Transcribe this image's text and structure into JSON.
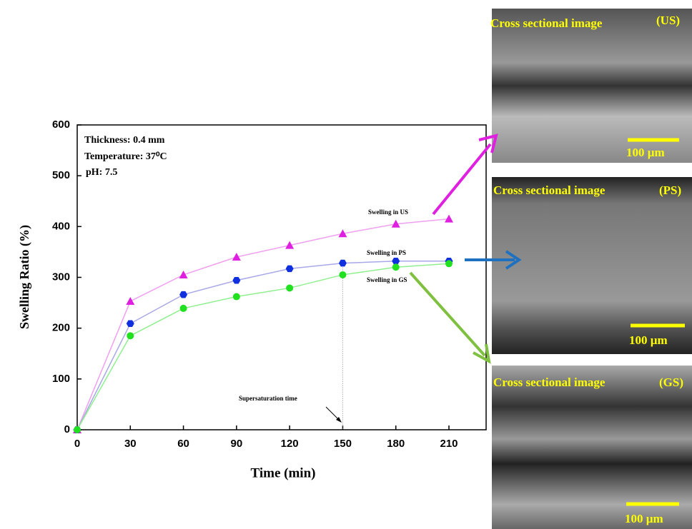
{
  "chart_data": {
    "type": "line",
    "xlabel": "Time (min)",
    "ylabel": "Swelling Ratio (%)",
    "x": [
      0,
      30,
      60,
      90,
      120,
      150,
      180,
      210
    ],
    "xlim": [
      0,
      231
    ],
    "xticks": [
      0,
      30,
      60,
      90,
      120,
      150,
      180,
      210
    ],
    "ylim": [
      0,
      600
    ],
    "yticks": [
      0,
      100,
      200,
      300,
      400,
      500,
      600
    ],
    "series": [
      {
        "name": "Swelling in US",
        "color": "#e020e0",
        "line_color": "#f0a0f0",
        "marker": "triangle",
        "values": [
          0,
          253,
          305,
          340,
          363,
          386,
          405,
          415
        ]
      },
      {
        "name": "Swelling in PS",
        "color": "#1030e0",
        "line_color": "#a8a8e8",
        "marker": "hexagon",
        "values": [
          0,
          209,
          266,
          294,
          317,
          328,
          332,
          332
        ]
      },
      {
        "name": "Swelling in GS",
        "color": "#20e020",
        "line_color": "#90f090",
        "marker": "circle",
        "values": [
          0,
          185,
          239,
          262,
          279,
          305,
          320,
          327
        ]
      }
    ],
    "annotations": [
      "Thickness: 0.4 mm",
      "Temperature: 37⁰C",
      "pH: 7.5",
      "Supersaturation time"
    ]
  },
  "panels": [
    {
      "caption": "Cross sectional image",
      "tag": "(US)",
      "scale": "100 µm"
    },
    {
      "caption": "Cross sectional image",
      "tag": "(PS)",
      "scale": "100 µm"
    },
    {
      "caption": "Cross sectional image",
      "tag": "(GS)",
      "scale": "100 µm"
    }
  ]
}
